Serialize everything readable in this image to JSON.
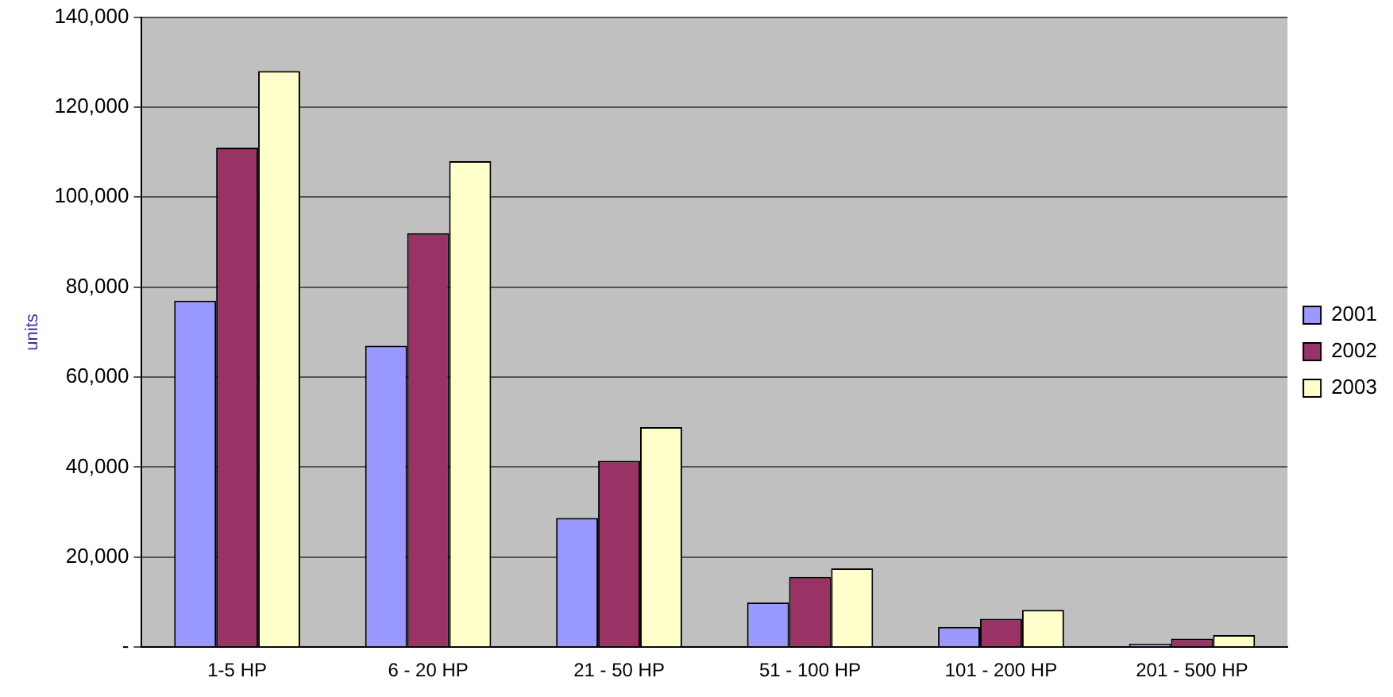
{
  "chart_data": {
    "type": "bar",
    "ylabel": "units",
    "categories": [
      "1-5 HP",
      "6 - 20 HP",
      "21 - 50 HP",
      "51 - 100 HP",
      "101 - 200 HP",
      "201 - 500 HP"
    ],
    "series": [
      {
        "name": "2001",
        "color": "#9999ff",
        "values": [
          77000,
          67000,
          28700,
          9900,
          4500,
          800
        ]
      },
      {
        "name": "2002",
        "color": "#993366",
        "values": [
          111000,
          92000,
          41400,
          15600,
          6300,
          1900
        ]
      },
      {
        "name": "2003",
        "color": "#ffffcc",
        "values": [
          128000,
          108000,
          48900,
          17500,
          8300,
          2700
        ]
      }
    ],
    "ylim": [
      0,
      140000
    ],
    "yticks": [
      {
        "value": 0,
        "label": "-"
      },
      {
        "value": 20000,
        "label": "20,000"
      },
      {
        "value": 40000,
        "label": "40,000"
      },
      {
        "value": 60000,
        "label": "60,000"
      },
      {
        "value": 80000,
        "label": "80,000"
      },
      {
        "value": 100000,
        "label": "100,000"
      },
      {
        "value": 120000,
        "label": "120,000"
      },
      {
        "value": 140000,
        "label": "140,000"
      }
    ],
    "grid": "y",
    "legend": "right"
  }
}
